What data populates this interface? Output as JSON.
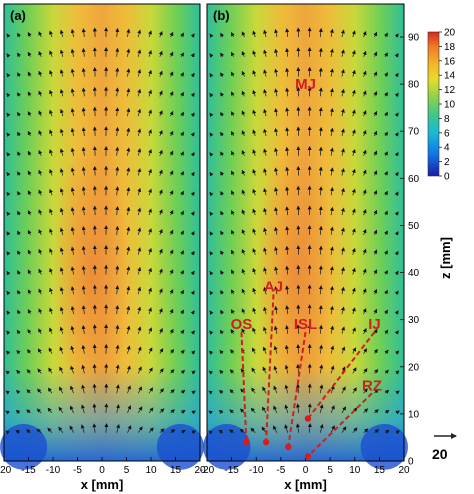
{
  "chart_data": [
    {
      "type": "heatmap",
      "panel_label": "(a)",
      "xlabel": "x [mm]",
      "xlim": [
        -20,
        20
      ],
      "x_ticks": [
        -20,
        -15,
        -10,
        -5,
        0,
        5,
        10,
        15,
        20
      ],
      "ylim": [
        0,
        97
      ],
      "field": "mean velocity magnitude with vector arrows"
    },
    {
      "type": "heatmap",
      "panel_label": "(b)",
      "xlabel": "x [mm]",
      "ylabel": "z [mm]",
      "xlim": [
        -20,
        20
      ],
      "x_ticks": [
        -20,
        -15,
        -10,
        -5,
        0,
        5,
        10,
        15,
        20
      ],
      "ylim": [
        0,
        97
      ],
      "y_ticks": [
        0,
        10,
        20,
        30,
        40,
        50,
        60,
        70,
        80,
        90
      ],
      "colorbar": {
        "range": [
          0,
          20
        ],
        "ticks": [
          0,
          2,
          4,
          6,
          8,
          10,
          12,
          14,
          16,
          18,
          20
        ]
      },
      "reference_vector": {
        "label": "20"
      },
      "region_labels": [
        {
          "text": "MJ",
          "x": 0,
          "z": 79
        },
        {
          "text": "OS",
          "x": -13,
          "z": 28,
          "point_x": -12,
          "point_z": 4
        },
        {
          "text": "AJ",
          "x": -6.5,
          "z": 36,
          "point_x": -8,
          "point_z": 4
        },
        {
          "text": "ISL",
          "x": 0,
          "z": 28,
          "point_x": -3.5,
          "point_z": 3
        },
        {
          "text": "IJ",
          "x": 14,
          "z": 28,
          "point_x": 0.5,
          "point_z": 9
        },
        {
          "text": "RZ",
          "x": 13.5,
          "z": 15,
          "point_x": 0.5,
          "point_z": 1
        }
      ]
    }
  ]
}
